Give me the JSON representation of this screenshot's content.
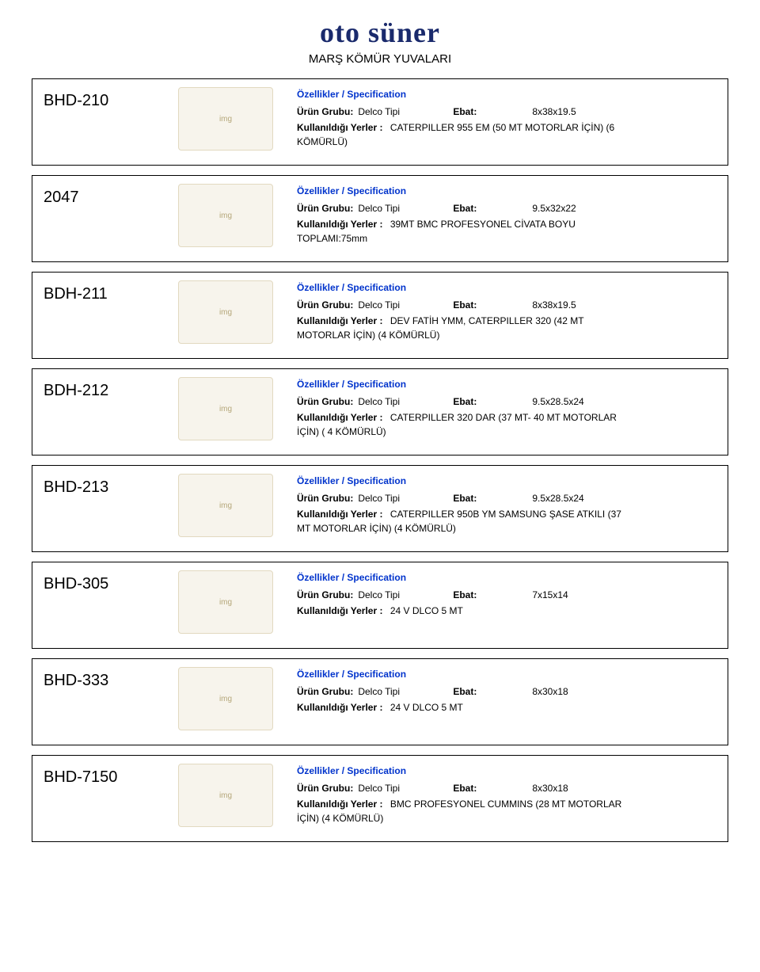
{
  "logo_text": "oto süner",
  "page_title": "MARŞ KÖMÜR YUVALARI",
  "labels": {
    "spec_header": "Özellikler / Specification",
    "group": "Ürün Grubu:",
    "ebat": "Ebat:",
    "usage": "Kullanıldığı Yerler :"
  },
  "products": [
    {
      "code": "BHD-210",
      "group": "Delco Tipi",
      "ebat": "8x38x19.5",
      "usage": "CATERPILLER 955 EM (50 MT MOTORLAR İÇİN) (6",
      "usage2": "KÖMÜRLÜ)"
    },
    {
      "code": "2047",
      "group": "Delco Tipi",
      "ebat": "9.5x32x22",
      "usage": "39MT BMC PROFESYONEL CİVATA BOYU",
      "usage2": "TOPLAMI:75mm"
    },
    {
      "code": "BDH-211",
      "group": "Delco Tipi",
      "ebat": "8x38x19.5",
      "usage": "DEV FATİH YMM, CATERPILLER 320 (42 MT",
      "usage2": "MOTORLAR İÇİN) (4 KÖMÜRLÜ)"
    },
    {
      "code": "BDH-212",
      "group": "Delco Tipi",
      "ebat": "9.5x28.5x24",
      "usage": "CATERPILLER 320 DAR (37 MT- 40 MT MOTORLAR",
      "usage2": "İÇİN) ( 4 KÖMÜRLÜ)"
    },
    {
      "code": "BHD-213",
      "group": "Delco Tipi",
      "ebat": "9.5x28.5x24",
      "usage": "CATERPILLER 950B YM SAMSUNG ŞASE ATKILI (37",
      "usage2": "MT MOTORLAR İÇİN) (4 KÖMÜRLÜ)"
    },
    {
      "code": "BHD-305",
      "group": "Delco Tipi",
      "ebat": "7x15x14",
      "usage": "24 V DLCO 5 MT",
      "usage2": ""
    },
    {
      "code": "BHD-333",
      "group": "Delco Tipi",
      "ebat": "8x30x18",
      "usage": "24 V DLCO 5 MT",
      "usage2": ""
    },
    {
      "code": "BHD-7150",
      "group": "Delco Tipi",
      "ebat": "8x30x18",
      "usage": "BMC PROFESYONEL CUMMINS (28 MT MOTORLAR",
      "usage2": "İÇİN) (4 KÖMÜRLÜ)"
    }
  ]
}
